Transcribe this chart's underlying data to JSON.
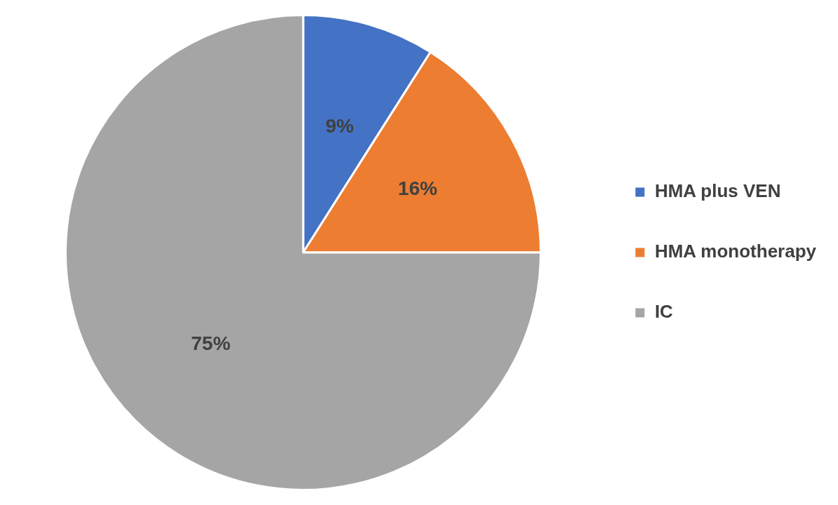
{
  "chart_data": {
    "type": "pie",
    "categories": [
      "HMA plus VEN",
      "HMA monotherapy",
      "IC"
    ],
    "values": [
      9,
      16,
      75
    ],
    "colors": [
      "#4472c4",
      "#ed7d31",
      "#a5a5a5"
    ],
    "value_labels": [
      "9%",
      "16%",
      "75%"
    ],
    "legend": "right"
  }
}
